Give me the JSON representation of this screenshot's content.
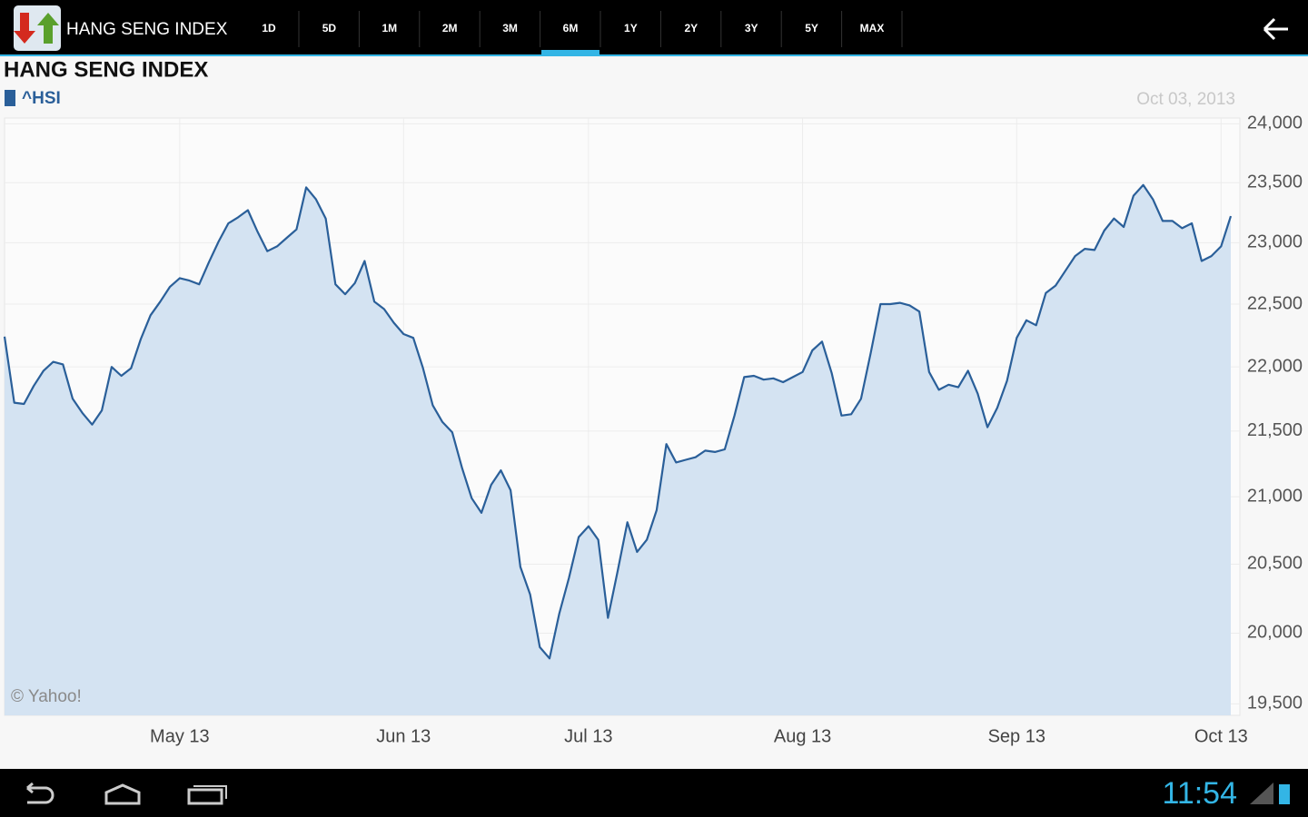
{
  "app_bar": {
    "title": "HANG SENG INDEX",
    "tabs": [
      "1D",
      "5D",
      "1M",
      "2M",
      "3M",
      "6M",
      "1Y",
      "2Y",
      "3Y",
      "5Y",
      "MAX"
    ],
    "selected_tab": 5
  },
  "chart_data": {
    "type": "area",
    "title": "HANG SENG INDEX",
    "date_label": "Oct 03, 2013",
    "credit": "© Yahoo!",
    "categories": [
      null,
      null,
      null,
      null,
      null,
      null,
      null,
      null,
      null,
      null,
      null,
      null,
      null,
      null,
      null,
      null,
      null,
      null,
      "May 13",
      null,
      null,
      null,
      null,
      null,
      null,
      null,
      null,
      null,
      null,
      null,
      null,
      null,
      null,
      null,
      null,
      null,
      null,
      null,
      null,
      null,
      null,
      "Jun 13",
      null,
      null,
      null,
      null,
      null,
      null,
      null,
      null,
      null,
      null,
      null,
      null,
      null,
      null,
      null,
      null,
      null,
      null,
      "Jul 13",
      null,
      null,
      null,
      null,
      null,
      null,
      null,
      null,
      null,
      null,
      null,
      null,
      null,
      null,
      null,
      null,
      null,
      null,
      null,
      null,
      null,
      "Aug 13",
      null,
      null,
      null,
      null,
      null,
      null,
      null,
      null,
      null,
      null,
      null,
      null,
      null,
      null,
      null,
      null,
      null,
      null,
      null,
      null,
      null,
      "Sep 13",
      null,
      null,
      null,
      null,
      null,
      null,
      null,
      null,
      null,
      null,
      null,
      null,
      null,
      null,
      null,
      null,
      null,
      null,
      null,
      null,
      "Oct 13",
      null
    ],
    "series": [
      {
        "name": "^HSI",
        "color": "#2a5f99",
        "fill": "#d4e3f2",
        "values": [
          22240,
          21720,
          21710,
          21850,
          21970,
          22040,
          22020,
          21750,
          21640,
          21550,
          21660,
          22000,
          21930,
          21990,
          22220,
          22410,
          22520,
          22640,
          22710,
          22690,
          22660,
          22840,
          23010,
          23160,
          23210,
          23270,
          23090,
          22930,
          22970,
          23040,
          23110,
          23460,
          23360,
          23200,
          22660,
          22580,
          22670,
          22850,
          22520,
          22460,
          22350,
          22260,
          22230,
          21990,
          21700,
          21570,
          21490,
          21220,
          20990,
          20880,
          21090,
          21200,
          21050,
          20480,
          20280,
          19900,
          19820,
          20140,
          20400,
          20700,
          20780,
          20680,
          20110,
          20450,
          20810,
          20590,
          20680,
          20900,
          21400,
          21260,
          21280,
          21300,
          21350,
          21340,
          21360,
          21620,
          21920,
          21930,
          21900,
          21910,
          21880,
          21920,
          21960,
          22130,
          22200,
          21950,
          21620,
          21630,
          21750,
          22110,
          22500,
          22500,
          22510,
          22490,
          22440,
          21960,
          21820,
          21860,
          21840,
          21970,
          21790,
          21530,
          21680,
          21890,
          22230,
          22370,
          22330,
          22590,
          22650,
          22770,
          22890,
          22950,
          22940,
          23100,
          23200,
          23130,
          23390,
          23480,
          23360,
          23180,
          23180,
          23120,
          23160,
          22850,
          22890,
          22970,
          23220
        ]
      }
    ],
    "ylim": [
      19420,
      24050
    ],
    "log_scale": true,
    "grid": true,
    "yticks": [
      {
        "value": 19500,
        "label": "19,500"
      },
      {
        "value": 20000,
        "label": "20,000"
      },
      {
        "value": 20500,
        "label": "20,500"
      },
      {
        "value": 21000,
        "label": "21,000"
      },
      {
        "value": 21500,
        "label": "21,500"
      },
      {
        "value": 22000,
        "label": "22,000"
      },
      {
        "value": 22500,
        "label": "22,500"
      },
      {
        "value": 23000,
        "label": "23,000"
      },
      {
        "value": 23500,
        "label": "23,500"
      },
      {
        "value": 24000,
        "label": "24,000"
      }
    ]
  },
  "status_bar": {
    "time": "11:54"
  }
}
